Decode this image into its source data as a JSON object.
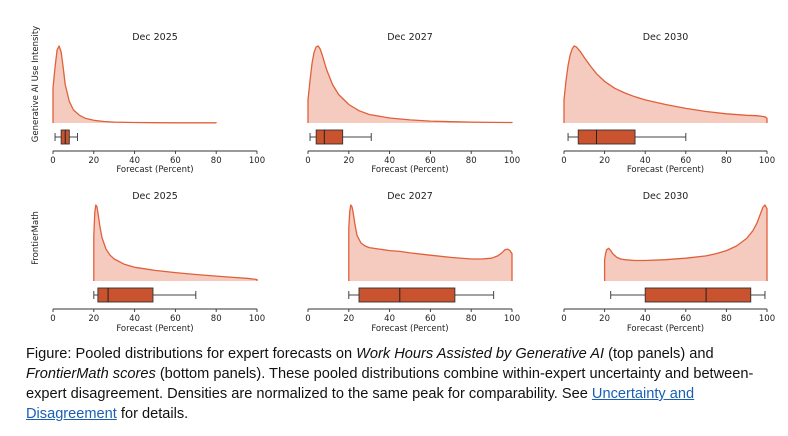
{
  "chart_data": [
    {
      "type": "area",
      "title": "Dec 2025",
      "ylabel": "Generative AI Use Intensity",
      "xlabel": "Forecast (Percent)",
      "xlim": [
        0,
        100
      ],
      "x_ticks": [
        "0",
        "20",
        "40",
        "60",
        "80",
        "100"
      ],
      "density_x": [
        0,
        1,
        2,
        3,
        4,
        5,
        6,
        8,
        10,
        13,
        16,
        20,
        25,
        30,
        40,
        50,
        60,
        70,
        80
      ],
      "density_y": [
        0.45,
        0.72,
        0.95,
        1.0,
        0.92,
        0.72,
        0.5,
        0.28,
        0.17,
        0.1,
        0.06,
        0.035,
        0.02,
        0.012,
        0.006,
        0.004,
        0.003,
        0.002,
        0.002
      ],
      "box": {
        "whisker_low": 1,
        "q1": 4,
        "median": 6,
        "q3": 8,
        "whisker_high": 12
      },
      "fill_color": "#f6cbbf",
      "line_color": "#e0603a",
      "box_color": "#c9532f"
    },
    {
      "type": "area",
      "title": "Dec 2027",
      "ylabel": "",
      "xlabel": "Forecast (Percent)",
      "xlim": [
        0,
        100
      ],
      "x_ticks": [
        "0",
        "20",
        "40",
        "60",
        "80",
        "100"
      ],
      "density_x": [
        0,
        1,
        2,
        3,
        4,
        5,
        6,
        7,
        9,
        12,
        15,
        20,
        25,
        30,
        40,
        50,
        60,
        70,
        80,
        90,
        100
      ],
      "density_y": [
        0.3,
        0.55,
        0.78,
        0.92,
        0.99,
        1.0,
        0.96,
        0.88,
        0.7,
        0.5,
        0.37,
        0.24,
        0.16,
        0.11,
        0.065,
        0.04,
        0.025,
        0.017,
        0.012,
        0.008,
        0.006
      ],
      "box": {
        "whisker_low": 1,
        "q1": 4,
        "median": 8,
        "q3": 17,
        "whisker_high": 31
      },
      "fill_color": "#f6cbbf",
      "line_color": "#e0603a",
      "box_color": "#c9532f"
    },
    {
      "type": "area",
      "title": "Dec 2030",
      "ylabel": "",
      "xlabel": "Forecast (Percent)",
      "xlim": [
        0,
        100
      ],
      "x_ticks": [
        "0",
        "20",
        "40",
        "60",
        "80",
        "100"
      ],
      "density_x": [
        0,
        1,
        2,
        3,
        4,
        5,
        6,
        8,
        10,
        13,
        16,
        20,
        25,
        30,
        35,
        40,
        50,
        60,
        70,
        80,
        90,
        95,
        99,
        100
      ],
      "density_y": [
        0.3,
        0.55,
        0.75,
        0.88,
        0.96,
        1.0,
        0.99,
        0.93,
        0.85,
        0.74,
        0.64,
        0.54,
        0.45,
        0.39,
        0.34,
        0.3,
        0.24,
        0.19,
        0.15,
        0.12,
        0.1,
        0.095,
        0.08,
        0.06
      ],
      "box": {
        "whisker_low": 2,
        "q1": 7,
        "median": 16,
        "q3": 35,
        "whisker_high": 60
      },
      "fill_color": "#f6cbbf",
      "line_color": "#e0603a",
      "box_color": "#c9532f"
    },
    {
      "type": "area",
      "title": "Dec 2025",
      "ylabel": "FrontierMath",
      "xlabel": "Forecast (Percent)",
      "xlim": [
        0,
        100
      ],
      "x_ticks": [
        "0",
        "20",
        "40",
        "60",
        "80",
        "100"
      ],
      "density_x": [
        20,
        20.5,
        21,
        21.5,
        22,
        23,
        24,
        26,
        28,
        30,
        35,
        40,
        45,
        50,
        60,
        70,
        80,
        90,
        95,
        100
      ],
      "density_y": [
        0.6,
        0.9,
        1.0,
        0.98,
        0.9,
        0.72,
        0.57,
        0.42,
        0.34,
        0.29,
        0.22,
        0.18,
        0.16,
        0.14,
        0.11,
        0.085,
        0.065,
        0.045,
        0.035,
        0.02
      ],
      "box": {
        "whisker_low": 20,
        "q1": 22,
        "median": 27,
        "q3": 49,
        "whisker_high": 70
      },
      "fill_color": "#f6cbbf",
      "line_color": "#e0603a",
      "box_color": "#c9532f"
    },
    {
      "type": "area",
      "title": "Dec 2027",
      "ylabel": "",
      "xlabel": "Forecast (Percent)",
      "xlim": [
        0,
        100
      ],
      "x_ticks": [
        "0",
        "20",
        "40",
        "60",
        "80",
        "100"
      ],
      "density_x": [
        20,
        20.5,
        21,
        21.5,
        22,
        23,
        24,
        26,
        28,
        30,
        35,
        40,
        45,
        50,
        60,
        70,
        80,
        85,
        90,
        93,
        95,
        96.5,
        98,
        99,
        100
      ],
      "density_y": [
        0.7,
        0.92,
        1.0,
        0.98,
        0.92,
        0.75,
        0.6,
        0.5,
        0.46,
        0.44,
        0.42,
        0.4,
        0.39,
        0.37,
        0.34,
        0.31,
        0.29,
        0.29,
        0.3,
        0.33,
        0.37,
        0.41,
        0.42,
        0.4,
        0.36
      ],
      "box": {
        "whisker_low": 20,
        "q1": 25,
        "median": 45,
        "q3": 72,
        "whisker_high": 91
      },
      "fill_color": "#f6cbbf",
      "line_color": "#e0603a",
      "box_color": "#c9532f"
    },
    {
      "type": "area",
      "title": "Dec 2030",
      "ylabel": "",
      "xlabel": "Forecast (Percent)",
      "xlim": [
        0,
        100
      ],
      "x_ticks": [
        "0",
        "20",
        "40",
        "60",
        "80",
        "100"
      ],
      "density_x": [
        20,
        20.5,
        21,
        22,
        23,
        24,
        26,
        28,
        30,
        35,
        40,
        50,
        60,
        70,
        75,
        80,
        85,
        90,
        93,
        95,
        97,
        98,
        99,
        100
      ],
      "density_y": [
        0.28,
        0.36,
        0.41,
        0.43,
        0.4,
        0.36,
        0.31,
        0.29,
        0.28,
        0.27,
        0.27,
        0.28,
        0.3,
        0.33,
        0.36,
        0.4,
        0.46,
        0.56,
        0.66,
        0.76,
        0.9,
        0.97,
        1.0,
        0.95
      ],
      "box": {
        "whisker_low": 23,
        "q1": 40,
        "median": 70,
        "q3": 92,
        "whisker_high": 99
      },
      "fill_color": "#f6cbbf",
      "line_color": "#e0603a",
      "box_color": "#c9532f"
    }
  ],
  "caption": {
    "figure_label": "Figure:",
    "text_1": " Pooled distributions for expert forecasts on ",
    "emph_1": "Work Hours Assisted by Generative AI",
    "text_2": " (top panels) and ",
    "emph_2": "FrontierMath scores",
    "text_3": " (bottom panels). These pooled distributions combine within-expert uncertainty and between-expert disagreement. Densities are normalized to the same peak for comparability. See ",
    "link": "Uncertainty and Disagreement",
    "text_4": " for details."
  }
}
